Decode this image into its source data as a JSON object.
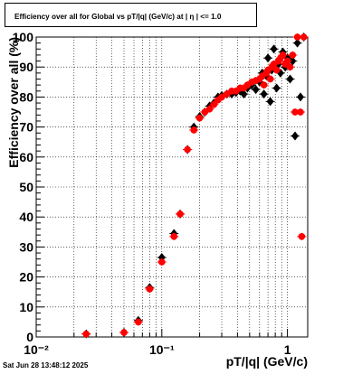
{
  "title": "Efficiency over all for Global vs pT/|q| (GeV/c) at |  η  | <= 1.0",
  "timestamp": "Sat Jun 28 13:48:12 2025",
  "chart_data": {
    "type": "scatter",
    "xlabel": "pT/|q| (GeV/c)",
    "ylabel": "Efficiency over all (%)",
    "xscale": "log",
    "xlim": [
      0.01,
      1.45
    ],
    "ylim": [
      0,
      100
    ],
    "xticks": [
      {
        "value": 0.01,
        "label": "10⁻²"
      },
      {
        "value": 0.1,
        "label": "10⁻¹"
      },
      {
        "value": 1,
        "label": "1"
      }
    ],
    "yticks": [
      0,
      10,
      20,
      30,
      40,
      50,
      60,
      70,
      80,
      90,
      100
    ],
    "grid": true,
    "legend": "none",
    "series": [
      {
        "color": "#000000",
        "marker": "diamond",
        "points": [
          {
            "x": 0.025,
            "y": 1.0
          },
          {
            "x": 0.05,
            "y": 1.5
          },
          {
            "x": 0.065,
            "y": 5.5
          },
          {
            "x": 0.08,
            "y": 16.5
          },
          {
            "x": 0.1,
            "y": 26.5
          },
          {
            "x": 0.125,
            "y": 34.5
          },
          {
            "x": 0.14,
            "y": 41
          },
          {
            "x": 0.16,
            "y": 62.5
          },
          {
            "x": 0.18,
            "y": 70
          },
          {
            "x": 0.2,
            "y": 73.5
          },
          {
            "x": 0.22,
            "y": 75
          },
          {
            "x": 0.24,
            "y": 77
          },
          {
            "x": 0.26,
            "y": 78
          },
          {
            "x": 0.28,
            "y": 80
          },
          {
            "x": 0.3,
            "y": 80.5
          },
          {
            "x": 0.33,
            "y": 81
          },
          {
            "x": 0.36,
            "y": 81
          },
          {
            "x": 0.39,
            "y": 81.5
          },
          {
            "x": 0.42,
            "y": 82
          },
          {
            "x": 0.45,
            "y": 81
          },
          {
            "x": 0.48,
            "y": 83
          },
          {
            "x": 0.52,
            "y": 84
          },
          {
            "x": 0.56,
            "y": 82.5
          },
          {
            "x": 0.6,
            "y": 85
          },
          {
            "x": 0.63,
            "y": 88
          },
          {
            "x": 0.65,
            "y": 81
          },
          {
            "x": 0.68,
            "y": 87
          },
          {
            "x": 0.7,
            "y": 93
          },
          {
            "x": 0.73,
            "y": 78.5
          },
          {
            "x": 0.75,
            "y": 89
          },
          {
            "x": 0.78,
            "y": 96
          },
          {
            "x": 0.82,
            "y": 83
          },
          {
            "x": 0.85,
            "y": 91
          },
          {
            "x": 0.88,
            "y": 88
          },
          {
            "x": 0.92,
            "y": 95
          },
          {
            "x": 0.96,
            "y": 90
          },
          {
            "x": 1.0,
            "y": 93
          },
          {
            "x": 1.05,
            "y": 86
          },
          {
            "x": 1.1,
            "y": 92
          },
          {
            "x": 1.15,
            "y": 67
          },
          {
            "x": 1.2,
            "y": 98
          },
          {
            "x": 1.27,
            "y": 80
          },
          {
            "x": 1.35,
            "y": 100
          }
        ]
      },
      {
        "color": "#ff0000",
        "marker": "circle",
        "points": [
          {
            "x": 0.025,
            "y": 1.0
          },
          {
            "x": 0.05,
            "y": 1.5
          },
          {
            "x": 0.065,
            "y": 5
          },
          {
            "x": 0.08,
            "y": 16
          },
          {
            "x": 0.1,
            "y": 25
          },
          {
            "x": 0.125,
            "y": 33.5
          },
          {
            "x": 0.14,
            "y": 41
          },
          {
            "x": 0.16,
            "y": 62.5
          },
          {
            "x": 0.18,
            "y": 69
          },
          {
            "x": 0.2,
            "y": 73
          },
          {
            "x": 0.22,
            "y": 75
          },
          {
            "x": 0.24,
            "y": 76
          },
          {
            "x": 0.26,
            "y": 77.5
          },
          {
            "x": 0.28,
            "y": 79
          },
          {
            "x": 0.3,
            "y": 80
          },
          {
            "x": 0.33,
            "y": 81
          },
          {
            "x": 0.36,
            "y": 82
          },
          {
            "x": 0.39,
            "y": 82
          },
          {
            "x": 0.42,
            "y": 83
          },
          {
            "x": 0.45,
            "y": 83
          },
          {
            "x": 0.48,
            "y": 84
          },
          {
            "x": 0.52,
            "y": 85
          },
          {
            "x": 0.56,
            "y": 85.5
          },
          {
            "x": 0.6,
            "y": 86
          },
          {
            "x": 0.63,
            "y": 87
          },
          {
            "x": 0.65,
            "y": 84
          },
          {
            "x": 0.68,
            "y": 88
          },
          {
            "x": 0.7,
            "y": 89
          },
          {
            "x": 0.73,
            "y": 86
          },
          {
            "x": 0.75,
            "y": 90
          },
          {
            "x": 0.78,
            "y": 91
          },
          {
            "x": 0.82,
            "y": 89
          },
          {
            "x": 0.85,
            "y": 92
          },
          {
            "x": 0.88,
            "y": 93
          },
          {
            "x": 0.92,
            "y": 94
          },
          {
            "x": 0.96,
            "y": 91
          },
          {
            "x": 1.0,
            "y": 92
          },
          {
            "x": 1.05,
            "y": 90
          },
          {
            "x": 1.1,
            "y": 94
          },
          {
            "x": 1.15,
            "y": 75
          },
          {
            "x": 1.2,
            "y": 100
          },
          {
            "x": 1.27,
            "y": 75
          },
          {
            "x": 1.3,
            "y": 33.5
          },
          {
            "x": 1.35,
            "y": 100
          }
        ]
      }
    ]
  }
}
